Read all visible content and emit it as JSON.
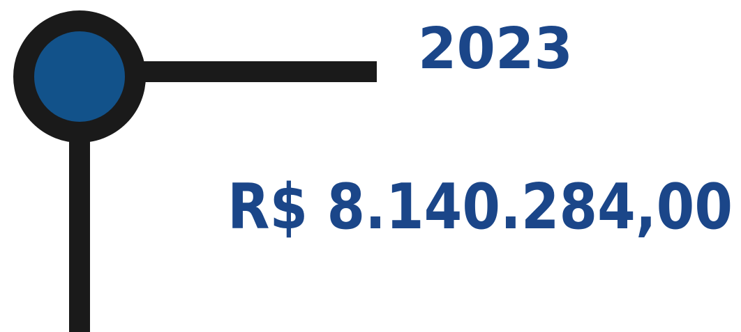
{
  "year": "2023",
  "amount": "R$ 8.140.284,00"
}
